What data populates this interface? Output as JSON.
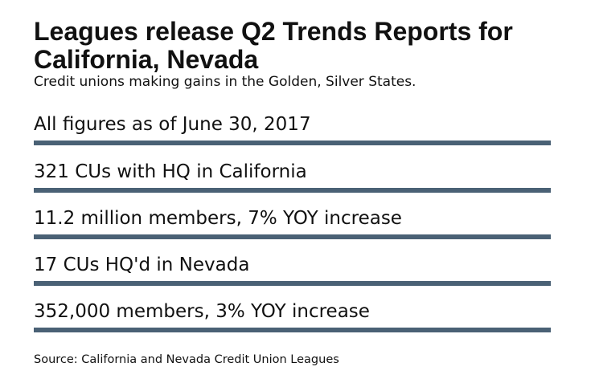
{
  "title": "Leagues release Q2 Trends Reports for California, Nevada",
  "subtitle": "Credit unions making gains in the Golden, Silver States.",
  "rows": [
    "All figures as of June 30, 2017",
    "321 CUs with HQ in California",
    "11.2 million members, 7% YOY increase",
    "17 CUs HQ'd in Nevada",
    "352,000 members, 3% YOY increase"
  ],
  "source": "Source: California and Nevada Credit Union Leagues",
  "colors": {
    "bar": "#4a6175"
  }
}
